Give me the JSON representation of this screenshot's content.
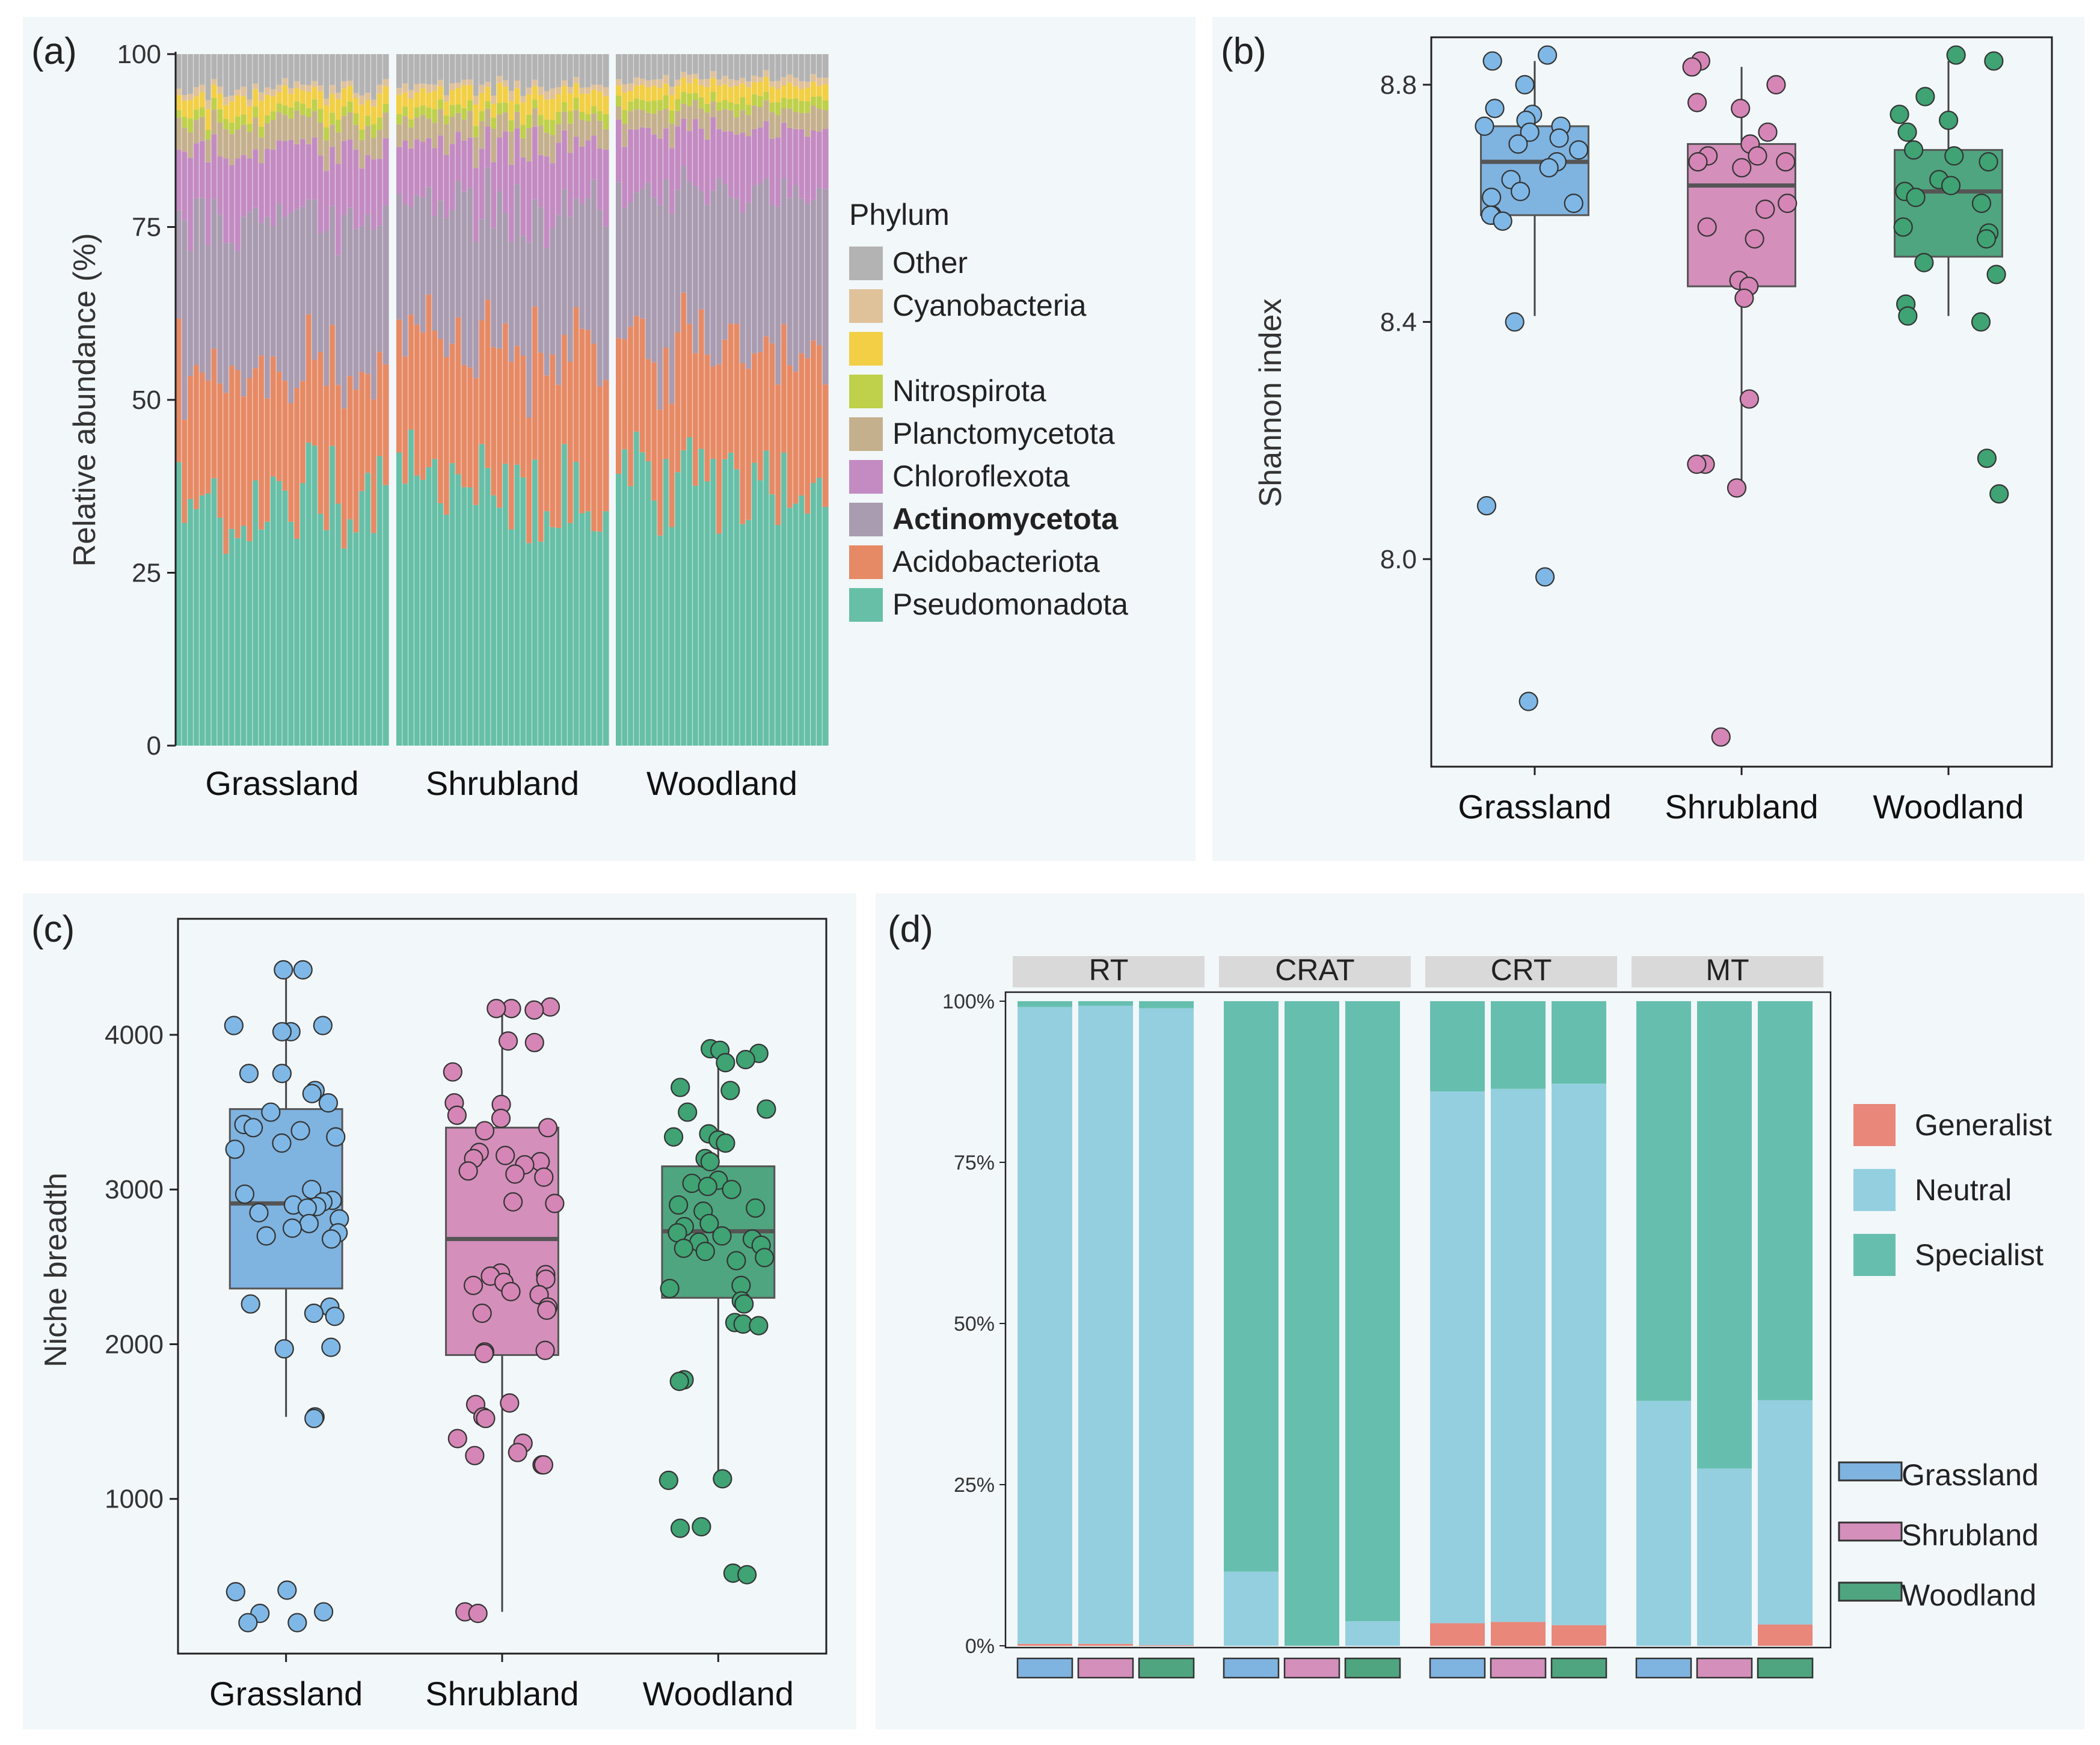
{
  "chart_data": [
    {
      "panel": "(a)",
      "type": "bar",
      "stacked": true,
      "ylabel": "Relative abundance (%)",
      "ylim": [
        0,
        100
      ],
      "yticks": [
        0,
        25,
        50,
        75,
        100
      ],
      "groups": [
        "Grassland",
        "Shrubland",
        "Woodland"
      ],
      "samples_per_group": 36,
      "legend_title": "Phylum",
      "phyla": [
        {
          "name": "Pseudomonadota",
          "color": "#66bfa6",
          "bold": false
        },
        {
          "name": "Acidobacteriota",
          "color": "#e68a65",
          "bold": false
        },
        {
          "name": "Actinomycetota",
          "color": "#a99bb0",
          "bold": true
        },
        {
          "name": "Chloroflexota",
          "color": "#c38bc2",
          "bold": false
        },
        {
          "name": "Planctomycetota",
          "color": "#c5b08e",
          "bold": false
        },
        {
          "name": "Nitrospirota",
          "color": "#bfd04a",
          "bold": false
        },
        {
          "name": "",
          "color": "#f2cf45",
          "bold": false
        },
        {
          "name": "Cyanobacteria",
          "color": "#dfc19a",
          "bold": false
        },
        {
          "name": "Other",
          "color": "#b3b3b3",
          "bold": false
        }
      ],
      "mean_composition_pct": {
        "Grassland": {
          "Pseudomonadota": 36,
          "Acidobacteriota": 18,
          "Actinomycetota": 22,
          "Chloroflexota": 10,
          "Planctomycetota": 4,
          "Nitrospirota": 1.5,
          "": 2.5,
          "Cyanobacteria": 1,
          "Other": 5
        },
        "Shrubland": {
          "Pseudomonadota": 36,
          "Acidobacteriota": 22,
          "Actinomycetota": 20,
          "Chloroflexota": 9,
          "Planctomycetota": 3.5,
          "Nitrospirota": 1.5,
          "": 2.5,
          "Cyanobacteria": 1,
          "Other": 4.5
        },
        "Woodland": {
          "Pseudomonadota": 37,
          "Acidobacteriota": 20,
          "Actinomycetota": 23,
          "Chloroflexota": 9,
          "Planctomycetota": 3,
          "Nitrospirota": 1.5,
          "": 2,
          "Cyanobacteria": 1,
          "Other": 3.5
        }
      }
    },
    {
      "panel": "(b)",
      "type": "box",
      "ylabel": "Shannon index",
      "ylim": [
        7.65,
        8.88
      ],
      "yticks": [
        8.0,
        8.4,
        8.8
      ],
      "categories": [
        "Grassland",
        "Shrubland",
        "Woodland"
      ],
      "colors": [
        "#7fb3e0",
        "#d48fbb",
        "#4fa57f"
      ],
      "point_colors": [
        "#7fb8e6",
        "#d586b6",
        "#3fa374"
      ],
      "box": [
        {
          "q1": 8.58,
          "median": 8.67,
          "q3": 8.73,
          "whisker_low": 8.41,
          "whisker_high": 8.84
        },
        {
          "q1": 8.46,
          "median": 8.63,
          "q3": 8.7,
          "whisker_low": 8.12,
          "whisker_high": 8.83
        },
        {
          "q1": 8.51,
          "median": 8.62,
          "q3": 8.69,
          "whisker_low": 8.41,
          "whisker_high": 8.84
        }
      ],
      "points": [
        [
          8.85,
          8.84,
          8.8,
          8.76,
          8.75,
          8.74,
          8.73,
          8.73,
          8.72,
          8.71,
          8.7,
          8.69,
          8.67,
          8.66,
          8.64,
          8.62,
          8.61,
          8.6,
          8.58,
          8.58,
          8.57,
          8.4,
          8.09,
          7.97,
          7.76
        ],
        [
          8.84,
          8.83,
          8.8,
          8.77,
          8.76,
          8.72,
          8.7,
          8.68,
          8.68,
          8.67,
          8.67,
          8.66,
          8.6,
          8.59,
          8.56,
          8.54,
          8.47,
          8.46,
          8.44,
          8.27,
          8.16,
          8.16,
          8.12,
          7.7
        ],
        [
          8.85,
          8.84,
          8.78,
          8.75,
          8.74,
          8.72,
          8.69,
          8.68,
          8.67,
          8.64,
          8.63,
          8.62,
          8.61,
          8.6,
          8.56,
          8.55,
          8.54,
          8.5,
          8.48,
          8.43,
          8.41,
          8.4,
          8.17,
          8.11
        ]
      ]
    },
    {
      "panel": "(c)",
      "type": "box",
      "ylabel": "Niche breadth",
      "ylim": [
        0,
        4750
      ],
      "yticks": [
        1000,
        2000,
        3000,
        4000
      ],
      "categories": [
        "Grassland",
        "Shrubland",
        "Woodland"
      ],
      "colors": [
        "#7fb3e0",
        "#d48fbb",
        "#4fa57f"
      ],
      "point_colors": [
        "#7fb8e6",
        "#d586b6",
        "#3fa374"
      ],
      "box": [
        {
          "q1": 2360,
          "median": 2910,
          "q3": 3520,
          "whisker_low": 1530,
          "whisker_high": 4420
        },
        {
          "q1": 1930,
          "median": 2680,
          "q3": 3400,
          "whisker_low": 270,
          "whisker_high": 4180
        },
        {
          "q1": 2300,
          "median": 2730,
          "q3": 3150,
          "whisker_low": 1130,
          "whisker_high": 3900
        }
      ],
      "points": [
        [
          4420,
          4420,
          4060,
          4060,
          4020,
          4020,
          3750,
          3750,
          3640,
          3620,
          3560,
          3500,
          3420,
          3400,
          3380,
          3340,
          3300,
          3260,
          3000,
          2970,
          2930,
          2920,
          2900,
          2890,
          2880,
          2850,
          2810,
          2780,
          2750,
          2720,
          2700,
          2680,
          2260,
          2240,
          2200,
          2180,
          1980,
          1970,
          1530,
          1520,
          410,
          400,
          270,
          260,
          200,
          200
        ],
        [
          4180,
          4170,
          4170,
          4160,
          3960,
          3950,
          3760,
          3560,
          3550,
          3480,
          3460,
          3400,
          3380,
          3240,
          3220,
          3200,
          3180,
          3160,
          3120,
          3100,
          3080,
          2920,
          2910,
          2460,
          2450,
          2440,
          2420,
          2400,
          2380,
          2340,
          2320,
          2240,
          2220,
          2200,
          1960,
          1950,
          1940,
          1620,
          1610,
          1530,
          1520,
          1390,
          1360,
          1300,
          1280,
          1220,
          1220,
          270,
          260
        ],
        [
          3910,
          3900,
          3880,
          3840,
          3820,
          3660,
          3640,
          3520,
          3500,
          3360,
          3340,
          3320,
          3300,
          3200,
          3180,
          3060,
          3040,
          3020,
          3000,
          2900,
          2880,
          2860,
          2780,
          2760,
          2720,
          2700,
          2680,
          2660,
          2640,
          2620,
          2600,
          2560,
          2540,
          2380,
          2360,
          2280,
          2260,
          2140,
          2130,
          2120,
          1770,
          1760,
          1130,
          1120,
          820,
          810,
          520,
          510
        ]
      ]
    },
    {
      "panel": "(d)",
      "type": "bar",
      "stacked": true,
      "facets": [
        "RT",
        "CRAT",
        "CRT",
        "MT"
      ],
      "categories": [
        "Grassland",
        "Shrubland",
        "Woodland"
      ],
      "category_colors": [
        "#7fb3e0",
        "#d48fbb",
        "#4fa57f"
      ],
      "yticks": [
        "0%",
        "25%",
        "50%",
        "75%",
        "100%"
      ],
      "ylim": [
        0,
        1
      ],
      "series": [
        {
          "name": "Generalist",
          "color": "#e8877a",
          "values": [
            [
              0.003,
              0.003,
              0.001
            ],
            [
              0.0,
              0.0,
              0.0
            ],
            [
              0.035,
              0.037,
              0.032
            ],
            [
              0.0,
              0.0,
              0.033
            ]
          ]
        },
        {
          "name": "Neutral",
          "color": "#94cfe0",
          "values": [
            [
              0.988,
              0.99,
              0.988
            ],
            [
              0.115,
              0.0,
              0.038
            ],
            [
              0.825,
              0.827,
              0.84
            ],
            [
              0.38,
              0.275,
              0.348
            ]
          ]
        },
        {
          "name": "Specialist",
          "color": "#66bfae",
          "values": [
            [
              0.009,
              0.007,
              0.011
            ],
            [
              0.885,
              1.0,
              0.962
            ],
            [
              0.14,
              0.136,
              0.128
            ],
            [
              0.62,
              0.725,
              0.619
            ]
          ]
        }
      ]
    }
  ],
  "panels": {
    "a": {
      "label": "(a)"
    },
    "b": {
      "label": "(b)"
    },
    "c": {
      "label": "(c)"
    },
    "d": {
      "label": "(d)"
    }
  }
}
